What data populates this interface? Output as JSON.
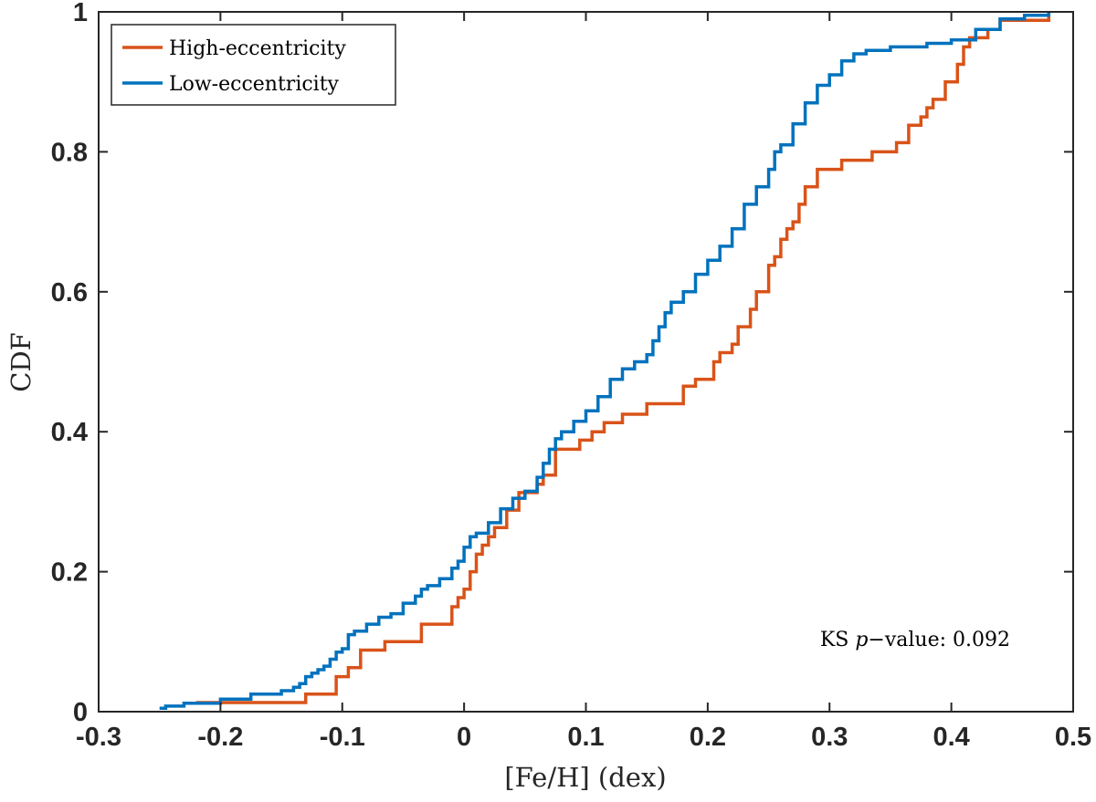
{
  "chart_data": {
    "type": "line",
    "subtype": "empirical-cdf-step",
    "xlabel": "[Fe/H] (dex)",
    "ylabel": "CDF",
    "xlim": [
      -0.3,
      0.5
    ],
    "ylim": [
      0,
      1
    ],
    "xticks": [
      "-0.3",
      "-0.2",
      "-0.1",
      "0",
      "0.1",
      "0.2",
      "0.3",
      "0.4",
      "0.5"
    ],
    "yticks": [
      "0",
      "0.2",
      "0.4",
      "0.6",
      "0.8",
      "1"
    ],
    "grid": false,
    "legend_position": "top-left",
    "annotation": {
      "prefix": "KS ",
      "italic": "p",
      "suffix": "−value: 0.092"
    },
    "series": [
      {
        "name": "High-eccentricity",
        "color": "#D95319",
        "x": [
          -0.22,
          -0.13,
          -0.105,
          -0.095,
          -0.085,
          -0.065,
          -0.035,
          -0.01,
          -0.005,
          0.0,
          0.005,
          0.01,
          0.015,
          0.02,
          0.025,
          0.035,
          0.045,
          0.06,
          0.065,
          0.075,
          0.085,
          0.095,
          0.105,
          0.115,
          0.13,
          0.15,
          0.17,
          0.18,
          0.19,
          0.195,
          0.2,
          0.205,
          0.21,
          0.22,
          0.225,
          0.235,
          0.24,
          0.25,
          0.255,
          0.26,
          0.265,
          0.27,
          0.275,
          0.28,
          0.29,
          0.31,
          0.335,
          0.355,
          0.365,
          0.375,
          0.38,
          0.385,
          0.395,
          0.405,
          0.41,
          0.41,
          0.415,
          0.43,
          0.44,
          0.45,
          0.48
        ],
        "y": [
          0.013,
          0.025,
          0.05,
          0.063,
          0.088,
          0.1,
          0.125,
          0.15,
          0.163,
          0.175,
          0.2,
          0.225,
          0.238,
          0.25,
          0.263,
          0.288,
          0.313,
          0.325,
          0.338,
          0.375,
          0.375,
          0.388,
          0.4,
          0.413,
          0.425,
          0.44,
          0.44,
          0.465,
          0.475,
          0.475,
          0.475,
          0.5,
          0.513,
          0.525,
          0.55,
          0.575,
          0.6,
          0.638,
          0.65,
          0.675,
          0.69,
          0.7,
          0.725,
          0.75,
          0.775,
          0.788,
          0.8,
          0.813,
          0.838,
          0.85,
          0.863,
          0.875,
          0.9,
          0.925,
          0.925,
          0.95,
          0.963,
          0.975,
          0.988,
          0.988,
          1.0
        ]
      },
      {
        "name": "Low-eccentricity",
        "color": "#0072BD",
        "x": [
          -0.25,
          -0.245,
          -0.23,
          -0.2,
          -0.175,
          -0.15,
          -0.14,
          -0.135,
          -0.13,
          -0.125,
          -0.12,
          -0.115,
          -0.11,
          -0.105,
          -0.1,
          -0.095,
          -0.09,
          -0.08,
          -0.07,
          -0.06,
          -0.05,
          -0.04,
          -0.035,
          -0.03,
          -0.02,
          -0.01,
          -0.005,
          0.0,
          0.005,
          0.01,
          0.02,
          0.03,
          0.04,
          0.05,
          0.06,
          0.065,
          0.07,
          0.075,
          0.08,
          0.09,
          0.1,
          0.11,
          0.12,
          0.13,
          0.14,
          0.15,
          0.155,
          0.16,
          0.165,
          0.17,
          0.18,
          0.19,
          0.2,
          0.21,
          0.22,
          0.23,
          0.24,
          0.25,
          0.255,
          0.26,
          0.27,
          0.28,
          0.29,
          0.3,
          0.31,
          0.32,
          0.33,
          0.35,
          0.38,
          0.4,
          0.42,
          0.44,
          0.46,
          0.48
        ],
        "y": [
          0.005,
          0.008,
          0.012,
          0.018,
          0.025,
          0.03,
          0.035,
          0.04,
          0.05,
          0.055,
          0.06,
          0.065,
          0.075,
          0.085,
          0.09,
          0.11,
          0.115,
          0.125,
          0.135,
          0.14,
          0.155,
          0.165,
          0.175,
          0.18,
          0.19,
          0.205,
          0.215,
          0.235,
          0.25,
          0.255,
          0.27,
          0.29,
          0.305,
          0.315,
          0.335,
          0.355,
          0.375,
          0.39,
          0.4,
          0.415,
          0.43,
          0.45,
          0.475,
          0.49,
          0.5,
          0.51,
          0.53,
          0.55,
          0.57,
          0.585,
          0.6,
          0.625,
          0.645,
          0.665,
          0.69,
          0.725,
          0.75,
          0.775,
          0.8,
          0.81,
          0.84,
          0.87,
          0.895,
          0.91,
          0.93,
          0.94,
          0.945,
          0.95,
          0.955,
          0.96,
          0.975,
          0.99,
          0.995,
          1.0
        ]
      }
    ]
  }
}
